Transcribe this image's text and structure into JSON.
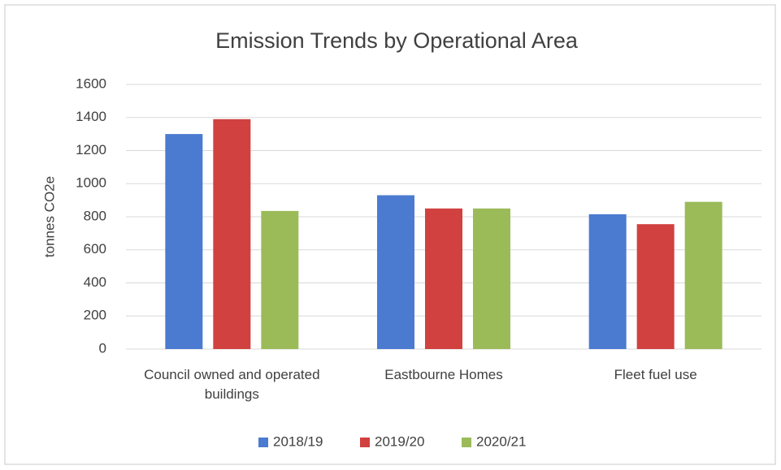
{
  "chart_data": {
    "type": "bar",
    "title": "Emission Trends by Operational Area",
    "y_label": "tonnes CO2e",
    "categories": [
      "Council owned and operated buildings",
      "Eastbourne Homes",
      "Fleet fuel use"
    ],
    "series": [
      {
        "name": "2018/19",
        "color": "#4a7bd0",
        "values": [
          1300,
          930,
          815
        ]
      },
      {
        "name": "2019/20",
        "color": "#d0413f",
        "values": [
          1390,
          850,
          755
        ]
      },
      {
        "name": "2020/21",
        "color": "#9bbb59",
        "values": [
          835,
          850,
          890
        ]
      }
    ],
    "ylim": [
      0,
      1600
    ],
    "yticks": [
      0,
      200,
      400,
      600,
      800,
      1000,
      1200,
      1400,
      1600
    ],
    "grid": true
  }
}
